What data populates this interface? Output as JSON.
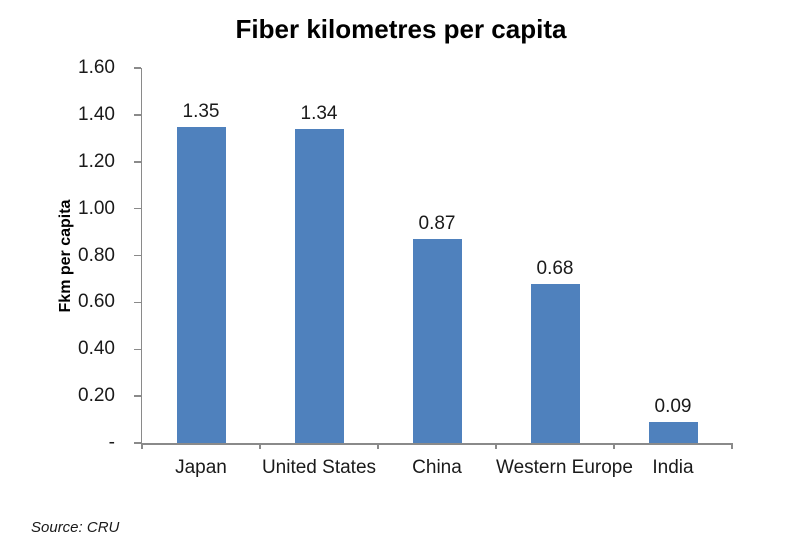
{
  "chart_data": {
    "type": "bar",
    "title": "Fiber kilometres per capita",
    "ylabel": "Fkm per capita",
    "xlabel": "",
    "categories": [
      "Japan",
      "United States",
      "China",
      "Western Europe",
      "India"
    ],
    "values": [
      1.35,
      1.34,
      0.87,
      0.68,
      0.09
    ],
    "data_labels": [
      "1.35",
      "1.34",
      "0.87",
      "0.68",
      "0.09"
    ],
    "y_ticks": [
      {
        "label": "1.60",
        "value": 1.6
      },
      {
        "label": "1.40",
        "value": 1.4
      },
      {
        "label": "1.20",
        "value": 1.2
      },
      {
        "label": "1.00",
        "value": 1.0
      },
      {
        "label": "0.80",
        "value": 0.8
      },
      {
        "label": "0.60",
        "value": 0.6
      },
      {
        "label": "0.40",
        "value": 0.4
      },
      {
        "label": "0.20",
        "value": 0.2
      },
      {
        "label": "-",
        "value": 0.0
      }
    ],
    "ylim": [
      0,
      1.6
    ],
    "grid": false,
    "legend": "none",
    "bar_color": "#4F81BD",
    "axis_color": "#8A8A8A",
    "source": "Source: CRU"
  }
}
